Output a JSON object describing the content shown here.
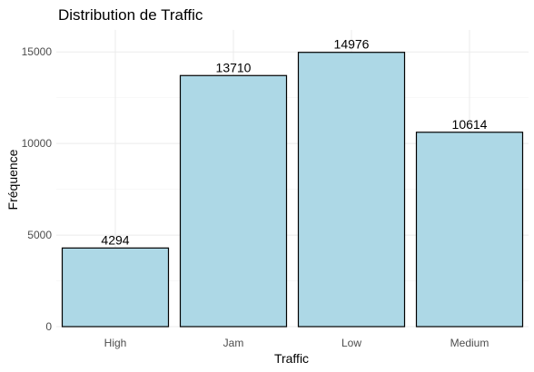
{
  "chart_data": {
    "type": "bar",
    "title": "Distribution de Traffic",
    "xlabel": "Traffic",
    "ylabel": "Fréquence",
    "categories": [
      "High",
      "Jam",
      "Low",
      "Medium"
    ],
    "values": [
      4294,
      13710,
      14976,
      10614
    ],
    "data_labels": [
      "4294",
      "13710",
      "14976",
      "10614"
    ],
    "ylim": [
      0,
      16200
    ],
    "yticks": [
      0,
      5000,
      10000,
      15000
    ],
    "ytick_labels": [
      "0",
      "5000",
      "10000",
      "15000"
    ],
    "bar_color": "#add8e6",
    "bar_outline": "#000000",
    "grid": true,
    "legend": "none"
  }
}
